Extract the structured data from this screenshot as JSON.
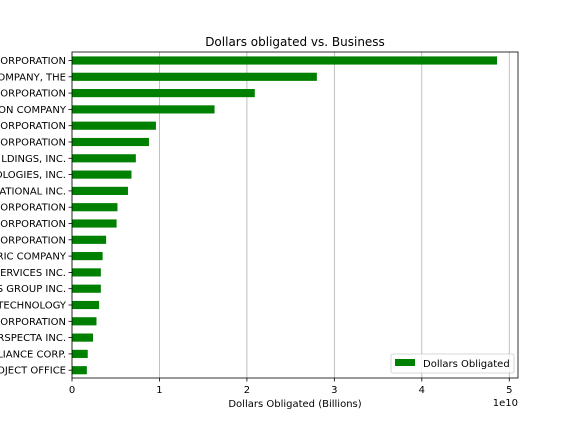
{
  "chart_data": {
    "type": "bar",
    "orientation": "horizontal",
    "title": "Dollars obligated vs. Business",
    "xlabel": "Dollars Obligated (Billions)",
    "ylabel": "",
    "offset_text": "1e10",
    "xlim": [
      0,
      51000000000
    ],
    "xticks": [
      0,
      10000000000,
      20000000000,
      30000000000,
      40000000000,
      50000000000
    ],
    "xtick_labels": [
      "0",
      "1",
      "2",
      "3",
      "4",
      "5"
    ],
    "grid": "vertical",
    "legend_position": "lower right",
    "bar_color": "#008000",
    "series": [
      {
        "name": "Dollars Obligated"
      }
    ],
    "categories": [
      "ORPORATION",
      "OMPANY, THE",
      "ORPORATION",
      "ON COMPANY",
      "ORPORATION",
      "ORPORATION",
      "LDINGS, INC.",
      "OLOGIES, INC.",
      "ATIONAL INC.",
      "ORPORATION",
      "ORPORATION",
      "ORPORATION",
      "RIC COMPANY",
      "ERVICES INC.",
      "S GROUP INC.",
      "TECHNOLOGY",
      "ORPORATION",
      "RSPECTA INC.",
      "LIANCE CORP.",
      "ROJECT OFFICE"
    ],
    "values": [
      48600000000,
      28000000000,
      20900000000,
      16300000000,
      9600000000,
      8800000000,
      7300000000,
      6800000000,
      6400000000,
      5200000000,
      5100000000,
      3900000000,
      3500000000,
      3300000000,
      3300000000,
      3100000000,
      2800000000,
      2400000000,
      1800000000,
      1700000000
    ]
  }
}
